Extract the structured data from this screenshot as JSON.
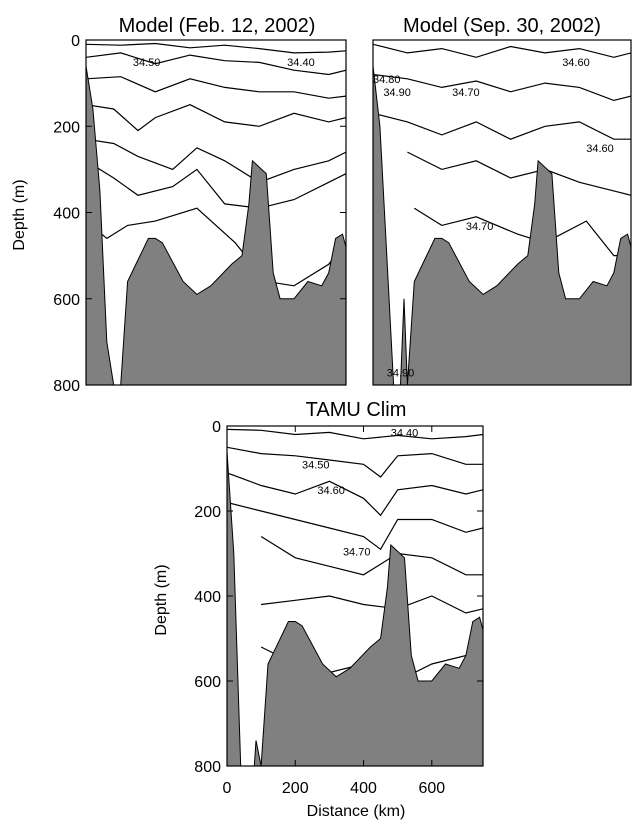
{
  "chart_data": [
    {
      "type": "contour",
      "title": "Model (Feb. 12, 2002)",
      "ylabel": "Depth (m)",
      "xlabel": "",
      "y_ticks": [
        "0",
        "200",
        "400",
        "600",
        "800"
      ],
      "x_ticks": [],
      "ylim": [
        0,
        800
      ],
      "xlim": [
        0,
        750
      ],
      "contour_labels": [
        {
          "text": "34.40",
          "x": 620,
          "y": 60
        },
        {
          "text": "34.50",
          "x": 175,
          "y": 60
        }
      ],
      "contours": [
        [
          [
            0,
            10
          ],
          [
            100,
            12
          ],
          [
            200,
            8
          ],
          [
            300,
            18
          ],
          [
            400,
            12
          ],
          [
            500,
            20
          ],
          [
            600,
            30
          ],
          [
            700,
            28
          ],
          [
            750,
            25
          ]
        ],
        [
          [
            0,
            40
          ],
          [
            100,
            30
          ],
          [
            200,
            55
          ],
          [
            300,
            35
          ],
          [
            400,
            48
          ],
          [
            500,
            52
          ],
          [
            600,
            70
          ],
          [
            700,
            80
          ],
          [
            750,
            70
          ]
        ],
        [
          [
            0,
            90
          ],
          [
            100,
            85
          ],
          [
            200,
            120
          ],
          [
            300,
            90
          ],
          [
            400,
            110
          ],
          [
            500,
            120
          ],
          [
            600,
            120
          ],
          [
            700,
            135
          ],
          [
            750,
            130
          ]
        ],
        [
          [
            0,
            150
          ],
          [
            80,
            160
          ],
          [
            150,
            210
          ],
          [
            200,
            180
          ],
          [
            300,
            150
          ],
          [
            400,
            190
          ],
          [
            500,
            200
          ],
          [
            600,
            170
          ],
          [
            700,
            190
          ],
          [
            750,
            180
          ]
        ],
        [
          [
            0,
            230
          ],
          [
            80,
            240
          ],
          [
            150,
            270
          ],
          [
            250,
            300
          ],
          [
            320,
            250
          ],
          [
            400,
            280
          ],
          [
            500,
            330
          ],
          [
            600,
            300
          ],
          [
            700,
            280
          ],
          [
            750,
            260
          ]
        ],
        [
          [
            0,
            280
          ],
          [
            80,
            320
          ],
          [
            150,
            360
          ],
          [
            250,
            340
          ],
          [
            320,
            300
          ],
          [
            400,
            380
          ],
          [
            500,
            390
          ],
          [
            600,
            370
          ],
          [
            700,
            330
          ],
          [
            750,
            310
          ]
        ],
        [
          [
            0,
            420
          ],
          [
            60,
            460
          ],
          [
            120,
            430
          ],
          [
            200,
            420
          ],
          [
            320,
            390
          ],
          [
            430,
            470
          ],
          [
            520,
            560
          ],
          [
            600,
            570
          ],
          [
            700,
            520
          ],
          [
            750,
            470
          ]
        ]
      ],
      "bathymetry": [
        [
          0,
          60
        ],
        [
          20,
          160
        ],
        [
          40,
          350
        ],
        [
          60,
          700
        ],
        [
          80,
          800
        ],
        [
          100,
          800
        ],
        [
          120,
          560
        ],
        [
          150,
          510
        ],
        [
          180,
          460
        ],
        [
          200,
          460
        ],
        [
          220,
          470
        ],
        [
          280,
          560
        ],
        [
          320,
          590
        ],
        [
          360,
          570
        ],
        [
          420,
          520
        ],
        [
          450,
          500
        ],
        [
          470,
          380
        ],
        [
          480,
          280
        ],
        [
          520,
          310
        ],
        [
          540,
          540
        ],
        [
          560,
          600
        ],
        [
          600,
          600
        ],
        [
          640,
          560
        ],
        [
          680,
          570
        ],
        [
          700,
          540
        ],
        [
          720,
          460
        ],
        [
          740,
          450
        ],
        [
          750,
          480
        ]
      ]
    },
    {
      "type": "contour",
      "title": "Model (Sep. 30, 2002)",
      "ylabel": "",
      "xlabel": "",
      "y_ticks": [],
      "x_ticks": [],
      "ylim": [
        0,
        800
      ],
      "xlim": [
        0,
        750
      ],
      "contour_labels": [
        {
          "text": "34.80",
          "x": 40,
          "y": 100
        },
        {
          "text": "34.90",
          "x": 70,
          "y": 130
        },
        {
          "text": "34.70",
          "x": 270,
          "y": 130
        },
        {
          "text": "34.60",
          "x": 590,
          "y": 60
        },
        {
          "text": "34.60",
          "x": 660,
          "y": 260
        },
        {
          "text": "34.70",
          "x": 310,
          "y": 440
        },
        {
          "text": "34.90",
          "x": 80,
          "y": 780
        }
      ],
      "contours": [
        [
          [
            0,
            10
          ],
          [
            100,
            30
          ],
          [
            200,
            20
          ],
          [
            300,
            40
          ],
          [
            400,
            15
          ],
          [
            500,
            30
          ],
          [
            600,
            20
          ],
          [
            700,
            40
          ],
          [
            750,
            30
          ]
        ],
        [
          [
            0,
            80
          ],
          [
            100,
            90
          ],
          [
            200,
            110
          ],
          [
            300,
            95
          ],
          [
            400,
            120
          ],
          [
            500,
            100
          ],
          [
            600,
            110
          ],
          [
            700,
            140
          ],
          [
            750,
            130
          ]
        ],
        [
          [
            0,
            170
          ],
          [
            100,
            190
          ],
          [
            200,
            220
          ],
          [
            300,
            190
          ],
          [
            400,
            230
          ],
          [
            500,
            200
          ],
          [
            600,
            190
          ],
          [
            700,
            230
          ],
          [
            750,
            230
          ]
        ],
        [
          [
            100,
            260
          ],
          [
            200,
            300
          ],
          [
            300,
            280
          ],
          [
            400,
            320
          ],
          [
            500,
            300
          ],
          [
            600,
            330
          ],
          [
            700,
            350
          ],
          [
            750,
            360
          ]
        ],
        [
          [
            120,
            390
          ],
          [
            200,
            430
          ],
          [
            300,
            410
          ],
          [
            420,
            450
          ],
          [
            500,
            470
          ],
          [
            620,
            420
          ],
          [
            700,
            500
          ],
          [
            750,
            500
          ]
        ]
      ],
      "bathymetry": [
        [
          0,
          60
        ],
        [
          20,
          200
        ],
        [
          40,
          500
        ],
        [
          60,
          800
        ],
        [
          80,
          800
        ],
        [
          90,
          600
        ],
        [
          100,
          800
        ],
        [
          120,
          560
        ],
        [
          150,
          510
        ],
        [
          180,
          460
        ],
        [
          200,
          460
        ],
        [
          220,
          470
        ],
        [
          280,
          560
        ],
        [
          320,
          590
        ],
        [
          360,
          570
        ],
        [
          420,
          520
        ],
        [
          450,
          500
        ],
        [
          470,
          380
        ],
        [
          480,
          280
        ],
        [
          520,
          310
        ],
        [
          540,
          540
        ],
        [
          560,
          600
        ],
        [
          600,
          600
        ],
        [
          640,
          560
        ],
        [
          680,
          570
        ],
        [
          700,
          540
        ],
        [
          720,
          460
        ],
        [
          740,
          450
        ],
        [
          750,
          480
        ]
      ]
    },
    {
      "type": "contour",
      "title": "TAMU Clim",
      "ylabel": "Depth (m)",
      "xlabel": "Distance (km)",
      "y_ticks": [
        "0",
        "200",
        "400",
        "600",
        "800"
      ],
      "x_ticks": [
        "0",
        "200",
        "400",
        "600"
      ],
      "ylim": [
        0,
        800
      ],
      "xlim": [
        0,
        750
      ],
      "contour_labels": [
        {
          "text": "34.40",
          "x": 520,
          "y": 25
        },
        {
          "text": "34.50",
          "x": 260,
          "y": 100
        },
        {
          "text": "34.60",
          "x": 305,
          "y": 160
        },
        {
          "text": "34.70",
          "x": 380,
          "y": 305
        }
      ],
      "contours": [
        [
          [
            0,
            8
          ],
          [
            100,
            10
          ],
          [
            200,
            20
          ],
          [
            300,
            15
          ],
          [
            400,
            30
          ],
          [
            500,
            22
          ],
          [
            600,
            30
          ],
          [
            700,
            25
          ],
          [
            750,
            20
          ]
        ],
        [
          [
            0,
            50
          ],
          [
            100,
            65
          ],
          [
            200,
            70
          ],
          [
            300,
            80
          ],
          [
            400,
            90
          ],
          [
            450,
            120
          ],
          [
            500,
            70
          ],
          [
            600,
            65
          ],
          [
            700,
            90
          ],
          [
            750,
            90
          ]
        ],
        [
          [
            0,
            110
          ],
          [
            100,
            140
          ],
          [
            200,
            160
          ],
          [
            300,
            130
          ],
          [
            400,
            170
          ],
          [
            450,
            210
          ],
          [
            500,
            150
          ],
          [
            600,
            140
          ],
          [
            700,
            160
          ],
          [
            750,
            150
          ]
        ],
        [
          [
            0,
            180
          ],
          [
            100,
            200
          ],
          [
            200,
            220
          ],
          [
            300,
            240
          ],
          [
            400,
            260
          ],
          [
            450,
            290
          ],
          [
            500,
            220
          ],
          [
            600,
            220
          ],
          [
            700,
            250
          ],
          [
            750,
            240
          ]
        ],
        [
          [
            100,
            260
          ],
          [
            200,
            310
          ],
          [
            300,
            330
          ],
          [
            400,
            350
          ],
          [
            500,
            300
          ],
          [
            600,
            310
          ],
          [
            700,
            350
          ],
          [
            750,
            350
          ]
        ],
        [
          [
            100,
            420
          ],
          [
            200,
            410
          ],
          [
            300,
            400
          ],
          [
            400,
            420
          ],
          [
            500,
            430
          ],
          [
            600,
            400
          ],
          [
            700,
            440
          ],
          [
            750,
            430
          ]
        ],
        [
          [
            100,
            520
          ],
          [
            200,
            560
          ],
          [
            300,
            580
          ],
          [
            400,
            560
          ],
          [
            500,
            600
          ],
          [
            600,
            560
          ],
          [
            700,
            540
          ],
          [
            750,
            560
          ]
        ]
      ],
      "bathymetry": [
        [
          0,
          60
        ],
        [
          20,
          300
        ],
        [
          40,
          800
        ],
        [
          60,
          800
        ],
        [
          80,
          800
        ],
        [
          85,
          740
        ],
        [
          100,
          800
        ],
        [
          120,
          560
        ],
        [
          150,
          510
        ],
        [
          180,
          460
        ],
        [
          200,
          460
        ],
        [
          220,
          470
        ],
        [
          280,
          560
        ],
        [
          320,
          590
        ],
        [
          360,
          570
        ],
        [
          420,
          520
        ],
        [
          450,
          500
        ],
        [
          470,
          380
        ],
        [
          480,
          280
        ],
        [
          520,
          310
        ],
        [
          540,
          540
        ],
        [
          560,
          600
        ],
        [
          600,
          600
        ],
        [
          640,
          560
        ],
        [
          680,
          570
        ],
        [
          700,
          540
        ],
        [
          720,
          460
        ],
        [
          740,
          450
        ],
        [
          750,
          480
        ]
      ]
    }
  ]
}
